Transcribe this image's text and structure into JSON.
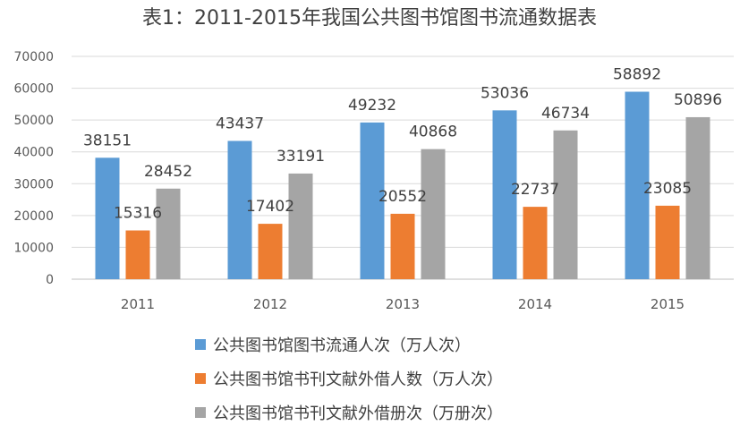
{
  "chart_data": {
    "type": "bar",
    "title": "表1：2011-2015年我国公共图书馆图书流通数据表",
    "categories": [
      "2011",
      "2012",
      "2013",
      "2014",
      "2015"
    ],
    "series": [
      {
        "name": "公共图书馆图书流通人次（万人次）",
        "values": [
          38151,
          43437,
          49232,
          53036,
          58892
        ],
        "color": "#5B9BD5"
      },
      {
        "name": "公共图书馆书刊文献外借人数（万人次）",
        "values": [
          15316,
          17402,
          20552,
          22737,
          23085
        ],
        "color": "#ED7D31"
      },
      {
        "name": "公共图书馆书刊文献外借册次（万册次）",
        "values": [
          28452,
          33191,
          40868,
          46734,
          50896
        ],
        "color": "#A5A5A5"
      }
    ],
    "ylim": [
      0,
      70000
    ],
    "yticks": [
      "0",
      "10000",
      "20000",
      "30000",
      "40000",
      "50000",
      "60000",
      "70000"
    ],
    "grid": true,
    "legend_position": "bottom"
  }
}
